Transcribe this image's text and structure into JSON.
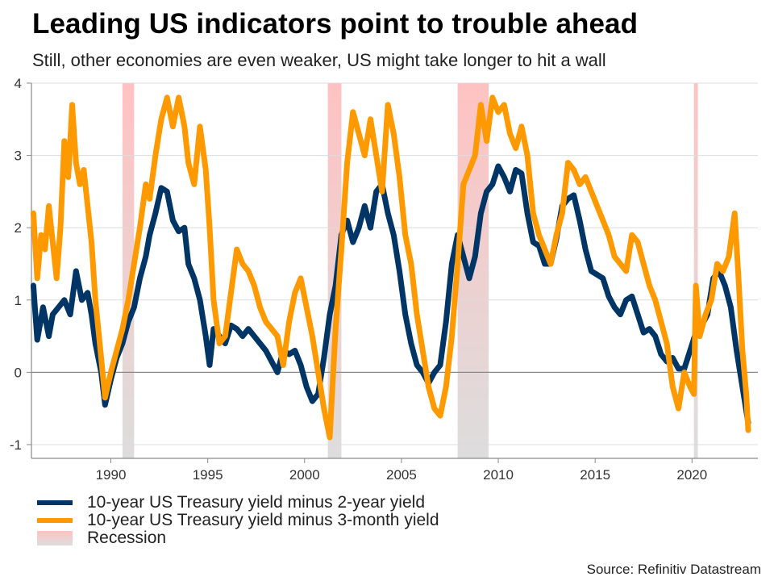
{
  "header": {
    "title": "Leading US indicators point to trouble ahead",
    "subtitle": "Still, other economies are even weaker, US might take longer to hit a wall"
  },
  "legend": {
    "items": [
      {
        "label": "10-year US Treasury yield minus 2-year yield",
        "color": "#003566",
        "kind": "line"
      },
      {
        "label": "10-year US Treasury yield minus 3-month yield",
        "color": "#ff9900",
        "kind": "line"
      },
      {
        "label": "Recession",
        "color": "#ffc2c2",
        "kind": "band"
      }
    ]
  },
  "source": "Source: Refinitiv Datastream",
  "chart_data": {
    "type": "line",
    "title": "Leading US indicators point to trouble ahead",
    "subtitle": "Still, other economies are even weaker, US might take longer to hit a wall",
    "xlabel": "",
    "ylabel": "",
    "xlim": [
      1985.9,
      2023.4
    ],
    "ylim": [
      -1.2,
      4
    ],
    "x_ticks": [
      1990,
      1995,
      2000,
      2005,
      2010,
      2015,
      2020
    ],
    "x_tick_labels": [
      "1990",
      "1995",
      "2000",
      "2005",
      "2010",
      "2015",
      "2020"
    ],
    "y_ticks": [
      -1,
      0,
      1,
      2,
      3,
      4
    ],
    "y_tick_labels": [
      "-1",
      "0",
      "1",
      "2",
      "3",
      "4"
    ],
    "grid": true,
    "legend_position": "bottom-left",
    "recessions": [
      {
        "start": 1990.6,
        "end": 1991.2
      },
      {
        "start": 2001.2,
        "end": 2001.9
      },
      {
        "start": 2007.9,
        "end": 2009.5
      },
      {
        "start": 2020.1,
        "end": 2020.3
      }
    ],
    "series": [
      {
        "name": "10-year US Treasury yield minus 2-year yield",
        "color": "#003566",
        "x": [
          1986.0,
          1986.2,
          1986.5,
          1986.8,
          1987.0,
          1987.3,
          1987.6,
          1987.9,
          1988.2,
          1988.5,
          1988.8,
          1989.0,
          1989.2,
          1989.5,
          1989.7,
          1990.0,
          1990.3,
          1990.6,
          1990.9,
          1991.2,
          1991.5,
          1991.8,
          1992.0,
          1992.3,
          1992.6,
          1992.9,
          1993.2,
          1993.5,
          1993.8,
          1994.0,
          1994.3,
          1994.6,
          1994.9,
          1995.1,
          1995.3,
          1995.6,
          1995.9,
          1996.2,
          1996.5,
          1996.8,
          1997.1,
          1997.4,
          1997.7,
          1998.0,
          1998.3,
          1998.6,
          1998.9,
          1999.2,
          1999.5,
          1999.8,
          2000.1,
          2000.4,
          2000.7,
          2001.0,
          2001.3,
          2001.6,
          2001.9,
          2002.2,
          2002.5,
          2002.8,
          2003.1,
          2003.4,
          2003.7,
          2004.0,
          2004.3,
          2004.6,
          2004.9,
          2005.2,
          2005.5,
          2005.8,
          2006.1,
          2006.4,
          2006.7,
          2007.0,
          2007.3,
          2007.6,
          2007.9,
          2008.2,
          2008.5,
          2008.8,
          2009.1,
          2009.4,
          2009.7,
          2010.0,
          2010.3,
          2010.6,
          2010.9,
          2011.2,
          2011.5,
          2011.8,
          2012.1,
          2012.4,
          2012.7,
          2013.0,
          2013.3,
          2013.6,
          2013.9,
          2014.2,
          2014.5,
          2014.8,
          2015.1,
          2015.4,
          2015.7,
          2016.0,
          2016.3,
          2016.6,
          2016.9,
          2017.2,
          2017.5,
          2017.8,
          2018.1,
          2018.4,
          2018.7,
          2019.0,
          2019.3,
          2019.6,
          2019.9,
          2020.2,
          2020.5,
          2020.8,
          2021.1,
          2021.4,
          2021.7,
          2022.0,
          2022.3,
          2022.6,
          2022.9
        ],
        "values": [
          1.2,
          0.45,
          0.9,
          0.5,
          0.8,
          0.9,
          1.0,
          0.8,
          1.4,
          1.0,
          1.1,
          0.8,
          0.4,
          0.0,
          -0.45,
          -0.1,
          0.2,
          0.4,
          0.7,
          0.9,
          1.3,
          1.6,
          1.9,
          2.2,
          2.55,
          2.5,
          2.1,
          1.95,
          2.0,
          1.5,
          1.3,
          1.0,
          0.5,
          0.1,
          0.6,
          0.5,
          0.4,
          0.65,
          0.6,
          0.5,
          0.6,
          0.5,
          0.4,
          0.3,
          0.15,
          0.0,
          0.3,
          0.25,
          0.3,
          0.1,
          -0.2,
          -0.4,
          -0.3,
          0.2,
          0.8,
          1.2,
          1.9,
          2.1,
          1.8,
          2.0,
          2.3,
          2.0,
          2.5,
          2.6,
          2.2,
          1.9,
          1.4,
          0.8,
          0.4,
          0.1,
          0.0,
          -0.15,
          0.0,
          0.1,
          0.7,
          1.5,
          1.9,
          1.6,
          1.3,
          1.6,
          2.2,
          2.5,
          2.6,
          2.85,
          2.7,
          2.5,
          2.8,
          2.75,
          2.2,
          1.8,
          1.75,
          1.5,
          1.5,
          1.85,
          2.3,
          2.4,
          2.45,
          2.1,
          1.7,
          1.4,
          1.35,
          1.3,
          1.05,
          0.9,
          0.8,
          1.0,
          1.05,
          0.8,
          0.55,
          0.6,
          0.5,
          0.25,
          0.15,
          0.2,
          0.05,
          0.05,
          0.3,
          0.55,
          0.65,
          0.8,
          1.3,
          1.4,
          1.2,
          0.9,
          0.3,
          -0.2,
          -0.7
        ]
      },
      {
        "name": "10-year US Treasury yield minus 3-month yield",
        "color": "#ff9900",
        "x": [
          1986.0,
          1986.2,
          1986.4,
          1986.6,
          1986.8,
          1987.0,
          1987.2,
          1987.4,
          1987.6,
          1987.8,
          1988.0,
          1988.2,
          1988.4,
          1988.6,
          1988.8,
          1989.0,
          1989.2,
          1989.5,
          1989.7,
          1990.0,
          1990.3,
          1990.6,
          1990.9,
          1991.2,
          1991.5,
          1991.8,
          1992.0,
          1992.3,
          1992.6,
          1992.9,
          1993.2,
          1993.5,
          1993.8,
          1994.0,
          1994.3,
          1994.6,
          1994.9,
          1995.1,
          1995.3,
          1995.6,
          1995.9,
          1996.2,
          1996.5,
          1996.8,
          1997.1,
          1997.4,
          1997.7,
          1998.0,
          1998.3,
          1998.6,
          1998.9,
          1999.2,
          1999.5,
          1999.8,
          2000.1,
          2000.4,
          2000.7,
          2001.0,
          2001.3,
          2001.6,
          2001.9,
          2002.2,
          2002.5,
          2002.8,
          2003.1,
          2003.4,
          2003.7,
          2004.0,
          2004.3,
          2004.6,
          2004.9,
          2005.2,
          2005.5,
          2005.8,
          2006.1,
          2006.4,
          2006.7,
          2007.0,
          2007.3,
          2007.6,
          2007.9,
          2008.2,
          2008.5,
          2008.8,
          2009.1,
          2009.4,
          2009.7,
          2010.0,
          2010.3,
          2010.6,
          2010.9,
          2011.2,
          2011.5,
          2011.8,
          2012.1,
          2012.4,
          2012.7,
          2013.0,
          2013.3,
          2013.6,
          2013.9,
          2014.2,
          2014.5,
          2014.8,
          2015.1,
          2015.4,
          2015.7,
          2016.0,
          2016.3,
          2016.6,
          2016.9,
          2017.2,
          2017.5,
          2017.8,
          2018.1,
          2018.4,
          2018.7,
          2019.0,
          2019.3,
          2019.6,
          2019.9,
          2020.1,
          2020.2,
          2020.4,
          2020.7,
          2021.0,
          2021.3,
          2021.6,
          2021.9,
          2022.2,
          2022.4,
          2022.6,
          2022.8,
          2022.9
        ],
        "values": [
          2.2,
          1.3,
          1.9,
          1.7,
          2.3,
          1.8,
          1.3,
          2.0,
          3.2,
          2.7,
          3.7,
          2.9,
          2.6,
          2.8,
          2.3,
          1.8,
          1.0,
          0.2,
          -0.35,
          0.0,
          0.3,
          0.6,
          1.0,
          1.5,
          2.0,
          2.6,
          2.4,
          3.0,
          3.5,
          3.8,
          3.4,
          3.8,
          3.4,
          2.9,
          2.6,
          3.4,
          2.8,
          2.0,
          1.0,
          0.4,
          0.5,
          1.1,
          1.7,
          1.5,
          1.4,
          1.2,
          0.9,
          0.7,
          0.6,
          0.5,
          0.1,
          0.7,
          1.1,
          1.3,
          0.9,
          0.5,
          0.0,
          -0.5,
          -0.9,
          0.6,
          1.7,
          2.9,
          3.6,
          3.3,
          3.0,
          3.5,
          3.0,
          2.5,
          3.7,
          3.3,
          2.7,
          1.9,
          1.5,
          0.8,
          0.3,
          -0.2,
          -0.5,
          -0.6,
          -0.2,
          0.5,
          1.5,
          2.6,
          2.8,
          3.0,
          3.7,
          3.2,
          3.8,
          3.6,
          3.7,
          3.3,
          3.1,
          3.4,
          3.0,
          2.2,
          1.9,
          1.7,
          1.5,
          1.9,
          2.2,
          2.9,
          2.8,
          2.6,
          2.7,
          2.5,
          2.3,
          2.1,
          1.9,
          1.6,
          1.5,
          1.4,
          1.9,
          1.8,
          1.5,
          1.2,
          1.0,
          0.7,
          0.4,
          -0.2,
          -0.5,
          0.0,
          -0.2,
          -0.3,
          1.2,
          0.5,
          0.8,
          1.0,
          1.5,
          1.4,
          1.6,
          2.2,
          1.3,
          0.3,
          -0.3,
          -0.8
        ]
      }
    ]
  }
}
